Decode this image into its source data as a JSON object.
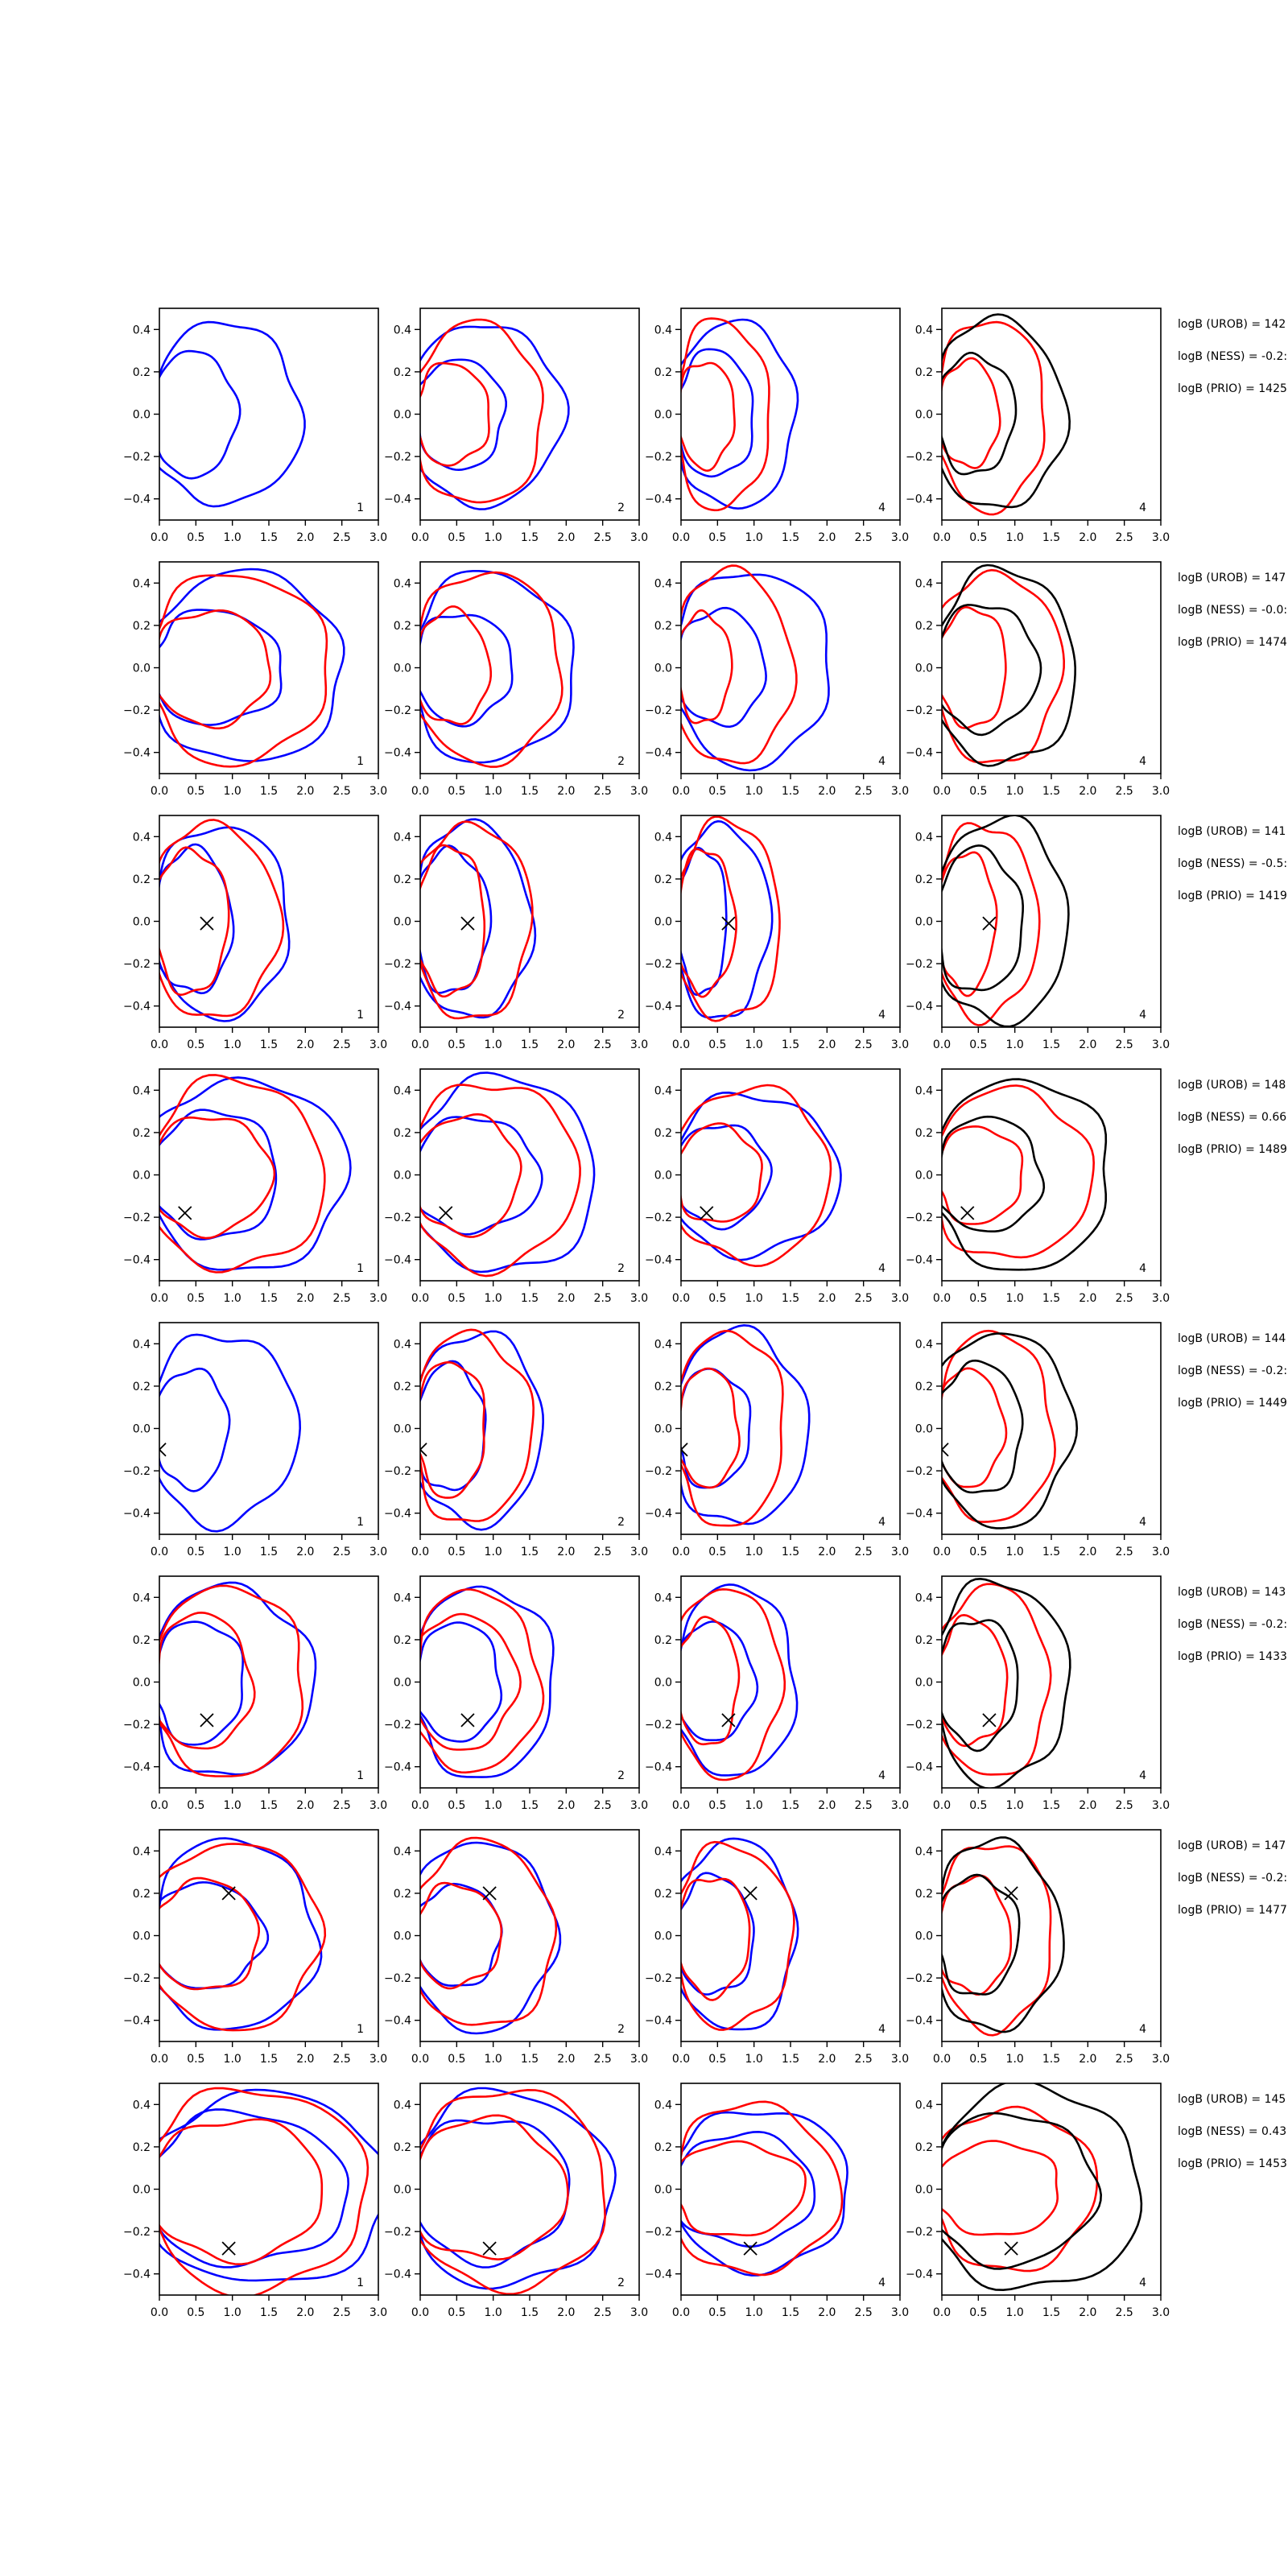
{
  "chart_data": {
    "type": "contour-grid",
    "x_ticks": [
      "0.0",
      "0.5",
      "1.0",
      "1.5",
      "2.0",
      "2.5",
      "3.0"
    ],
    "y_ticks": [
      "0.4",
      "0.2",
      "0.0",
      "−0.2",
      "−0.4"
    ],
    "xlim": [
      0,
      3
    ],
    "ylim": [
      -0.5,
      0.5
    ],
    "grid": false,
    "legend": "none",
    "colors": {
      "blue": "#0000ff",
      "red": "#ff0000",
      "black": "#000000",
      "axis": "#000000"
    },
    "panel_labels": [
      "1",
      "2",
      "4",
      "4"
    ],
    "rows": [
      {
        "marker": null,
        "annotations": [
          "logB (UROB) = 142",
          "logB (NESS) = -0.2:",
          "logB (PRIO) = 1425"
        ],
        "panels": [
          {
            "label": "1",
            "blue": [
              [
                1.85,
                0.43
              ],
              [
                1.0,
                0.3
              ]
            ],
            "red": [],
            "black": []
          },
          {
            "label": "2",
            "blue": [
              [
                1.85,
                0.43
              ],
              [
                1.1,
                0.26
              ]
            ],
            "red": [
              [
                1.6,
                0.43
              ],
              [
                0.9,
                0.24
              ]
            ],
            "black": []
          },
          {
            "label": "4",
            "blue": [
              [
                1.5,
                0.44
              ],
              [
                0.95,
                0.3
              ]
            ],
            "red": [
              [
                1.15,
                0.45
              ],
              [
                0.7,
                0.25
              ]
            ],
            "black": []
          },
          {
            "label": "4",
            "blue": [],
            "red": [
              [
                1.35,
                0.45
              ],
              [
                0.75,
                0.25
              ]
            ],
            "black": [
              [
                1.6,
                0.45
              ],
              [
                0.95,
                0.28
              ]
            ]
          }
        ]
      },
      {
        "marker": null,
        "annotations": [
          "logB (UROB) = 147",
          "logB (NESS) = -0.0:",
          "logB (PRIO) = 1474"
        ],
        "panels": [
          {
            "label": "1",
            "blue": [
              [
                2.4,
                0.45
              ],
              [
                1.6,
                0.27
              ]
            ],
            "red": [
              [
                2.2,
                0.45
              ],
              [
                1.45,
                0.27
              ]
            ],
            "black": []
          },
          {
            "label": "2",
            "blue": [
              [
                2.0,
                0.45
              ],
              [
                1.2,
                0.26
              ]
            ],
            "red": [
              [
                1.85,
                0.45
              ],
              [
                0.9,
                0.27
              ]
            ],
            "black": []
          },
          {
            "label": "4",
            "blue": [
              [
                1.95,
                0.46
              ],
              [
                1.1,
                0.27
              ]
            ],
            "red": [
              [
                1.45,
                0.46
              ],
              [
                0.65,
                0.26
              ]
            ],
            "black": []
          },
          {
            "label": "4",
            "blue": [],
            "red": [
              [
                1.55,
                0.45
              ],
              [
                0.85,
                0.28
              ]
            ],
            "black": [
              [
                1.75,
                0.46
              ],
              [
                1.25,
                0.3
              ]
            ]
          }
        ]
      },
      {
        "marker": [
          0.65,
          -0.01
        ],
        "annotations": [
          "logB (UROB) = 141",
          "logB (NESS) = -0.5:",
          "logB (PRIO) = 1419"
        ],
        "panels": [
          {
            "label": "1",
            "blue": [
              [
                1.7,
                0.45
              ],
              [
                0.95,
                0.34
              ]
            ],
            "red": [
              [
                1.55,
                0.46
              ],
              [
                0.9,
                0.34
              ]
            ],
            "black": []
          },
          {
            "label": "2",
            "blue": [
              [
                1.45,
                0.46
              ],
              [
                0.9,
                0.34
              ]
            ],
            "red": [
              [
                1.45,
                0.46
              ],
              [
                0.85,
                0.35
              ]
            ],
            "black": []
          },
          {
            "label": "4",
            "blue": [
              [
                1.15,
                0.46
              ],
              [
                0.6,
                0.34
              ]
            ],
            "red": [
              [
                1.3,
                0.47
              ],
              [
                0.7,
                0.34
              ]
            ],
            "black": []
          },
          {
            "label": "4",
            "blue": [],
            "red": [
              [
                1.25,
                0.46
              ],
              [
                0.7,
                0.33
              ]
            ],
            "black": [
              [
                1.65,
                0.48
              ],
              [
                1.05,
                0.34
              ]
            ]
          }
        ]
      },
      {
        "marker": [
          0.35,
          -0.18
        ],
        "annotations": [
          "logB (UROB) = 148",
          "logB (NESS) = 0.66",
          "logB (PRIO) = 1489"
        ],
        "panels": [
          {
            "label": "1",
            "blue": [
              [
                2.45,
                0.45
              ],
              [
                1.55,
                0.3
              ]
            ],
            "red": [
              [
                2.15,
                0.45
              ],
              [
                1.45,
                0.28
              ]
            ],
            "black": []
          },
          {
            "label": "2",
            "blue": [
              [
                2.3,
                0.46
              ],
              [
                1.55,
                0.27
              ]
            ],
            "red": [
              [
                2.05,
                0.44
              ],
              [
                1.3,
                0.28
              ]
            ],
            "black": []
          },
          {
            "label": "4",
            "blue": [
              [
                2.05,
                0.38
              ],
              [
                1.15,
                0.24
              ]
            ],
            "red": [
              [
                1.95,
                0.41
              ],
              [
                1.05,
                0.23
              ]
            ],
            "black": []
          },
          {
            "label": "4",
            "blue": [],
            "red": [
              [
                1.95,
                0.4
              ],
              [
                1.05,
                0.23
              ]
            ],
            "black": [
              [
                2.2,
                0.45
              ],
              [
                1.3,
                0.27
              ]
            ]
          }
        ]
      },
      {
        "marker": [
          0.0,
          -0.1
        ],
        "annotations": [
          "logB (UROB) = 144",
          "logB (NESS) = -0.2:",
          "logB (PRIO) = 1449"
        ],
        "panels": [
          {
            "label": "1",
            "blue": [
              [
                1.8,
                0.45
              ],
              [
                0.9,
                0.28
              ]
            ],
            "red": [],
            "black": []
          },
          {
            "label": "2",
            "blue": [
              [
                1.6,
                0.45
              ],
              [
                0.85,
                0.3
              ]
            ],
            "red": [
              [
                1.45,
                0.45
              ],
              [
                0.85,
                0.32
              ]
            ],
            "black": []
          },
          {
            "label": "4",
            "blue": [
              [
                1.65,
                0.46
              ],
              [
                0.9,
                0.28
              ]
            ],
            "red": [
              [
                1.35,
                0.46
              ],
              [
                0.75,
                0.28
              ]
            ],
            "black": []
          },
          {
            "label": "4",
            "blue": [],
            "red": [
              [
                1.45,
                0.45
              ],
              [
                0.8,
                0.28
              ]
            ],
            "black": [
              [
                1.7,
                0.46
              ],
              [
                1.05,
                0.31
              ]
            ]
          }
        ]
      },
      {
        "marker": [
          0.65,
          -0.18
        ],
        "annotations": [
          "logB (UROB) = 143",
          "logB (NESS) = -0.2:",
          "logB (PRIO) = 1433"
        ],
        "panels": [
          {
            "label": "1",
            "blue": [
              [
                2.0,
                0.45
              ],
              [
                1.1,
                0.29
              ]
            ],
            "red": [
              [
                1.9,
                0.45
              ],
              [
                1.2,
                0.32
              ]
            ],
            "black": []
          },
          {
            "label": "2",
            "blue": [
              [
                1.75,
                0.45
              ],
              [
                1.05,
                0.28
              ]
            ],
            "red": [
              [
                1.55,
                0.43
              ],
              [
                1.25,
                0.32
              ]
            ],
            "black": []
          },
          {
            "label": "4",
            "blue": [
              [
                1.5,
                0.45
              ],
              [
                0.95,
                0.28
              ]
            ],
            "red": [
              [
                1.3,
                0.45
              ],
              [
                0.75,
                0.3
              ]
            ],
            "black": []
          },
          {
            "label": "4",
            "blue": [],
            "red": [
              [
                1.4,
                0.45
              ],
              [
                0.85,
                0.3
              ]
            ],
            "black": [
              [
                1.65,
                0.48
              ],
              [
                1.0,
                0.3
              ]
            ]
          }
        ]
      },
      {
        "marker": [
          0.95,
          0.2
        ],
        "annotations": [
          "logB (UROB) = 147",
          "logB (NESS) = -0.2:",
          "logB (PRIO) = 1477"
        ],
        "panels": [
          {
            "label": "1",
            "blue": [
              [
                2.05,
                0.45
              ],
              [
                1.35,
                0.25
              ]
            ],
            "red": [
              [
                2.1,
                0.44
              ],
              [
                1.3,
                0.26
              ]
            ],
            "black": []
          },
          {
            "label": "2",
            "blue": [
              [
                1.75,
                0.45
              ],
              [
                1.05,
                0.24
              ]
            ],
            "red": [
              [
                1.75,
                0.44
              ],
              [
                1.05,
                0.24
              ]
            ],
            "black": []
          },
          {
            "label": "4",
            "blue": [
              [
                1.5,
                0.45
              ],
              [
                0.95,
                0.28
              ]
            ],
            "red": [
              [
                1.45,
                0.43
              ],
              [
                0.9,
                0.28
              ]
            ],
            "black": []
          },
          {
            "label": "4",
            "blue": [],
            "red": [
              [
                1.45,
                0.44
              ],
              [
                0.9,
                0.27
              ]
            ],
            "black": [
              [
                1.55,
                0.45
              ],
              [
                1.0,
                0.28
              ]
            ]
          }
        ]
      },
      {
        "marker": [
          0.95,
          -0.28
        ],
        "annotations": [
          "logB (UROB) = 145",
          "logB (NESS) = 0.43",
          "logB (PRIO) = 1453"
        ],
        "panels": [
          {
            "label": "1",
            "blue": [
              [
                3.0,
                0.45
              ],
              [
                2.45,
                0.36
              ]
            ],
            "red": [
              [
                2.7,
                0.48
              ],
              [
                2.15,
                0.33
              ]
            ],
            "black": []
          },
          {
            "label": "2",
            "blue": [
              [
                2.5,
                0.46
              ],
              [
                1.95,
                0.34
              ]
            ],
            "red": [
              [
                2.45,
                0.47
              ],
              [
                1.9,
                0.33
              ]
            ],
            "black": []
          },
          {
            "label": "4",
            "blue": [
              [
                2.2,
                0.38
              ],
              [
                1.75,
                0.26
              ]
            ],
            "red": [
              [
                2.05,
                0.4
              ],
              [
                1.6,
                0.22
              ]
            ],
            "black": []
          },
          {
            "label": "4",
            "blue": [],
            "red": [
              [
                2.0,
                0.38
              ],
              [
                1.55,
                0.22
              ]
            ],
            "black": [
              [
                2.6,
                0.48
              ],
              [
                2.0,
                0.36
              ]
            ]
          }
        ]
      }
    ]
  }
}
